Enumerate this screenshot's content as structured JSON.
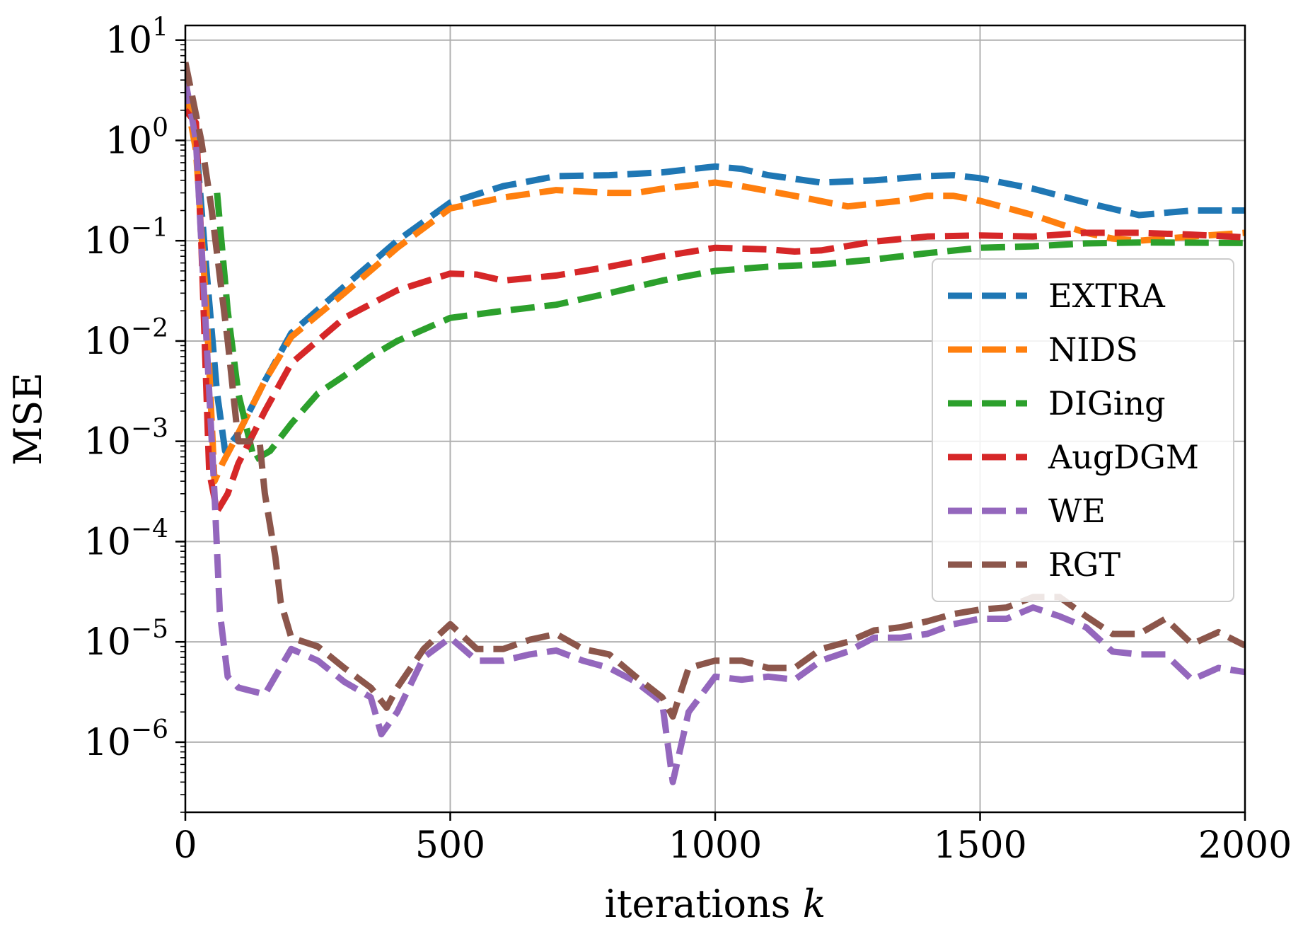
{
  "chart_data": {
    "type": "line",
    "xlabel": "iterations",
    "xlabel_var": "k",
    "ylabel": "MSE",
    "xlim": [
      0,
      2000
    ],
    "ylim": [
      2e-07,
      14
    ],
    "yscale": "log",
    "grid": true,
    "legend_position": "center-right",
    "x_ticks": [
      0,
      500,
      1000,
      1500,
      2000
    ],
    "x_tick_labels": [
      "0",
      "500",
      "1000",
      "1500",
      "2000"
    ],
    "y_ticks": [
      {
        "value": 10,
        "base": "10",
        "exp": "1"
      },
      {
        "value": 1,
        "base": "10",
        "exp": "0"
      },
      {
        "value": 0.1,
        "base": "10",
        "exp": "−1"
      },
      {
        "value": 0.01,
        "base": "10",
        "exp": "−2"
      },
      {
        "value": 0.001,
        "base": "10",
        "exp": "−3"
      },
      {
        "value": 0.0001,
        "base": "10",
        "exp": "−4"
      },
      {
        "value": 1e-05,
        "base": "10",
        "exp": "−5"
      },
      {
        "value": 1e-06,
        "base": "10",
        "exp": "−6"
      }
    ],
    "series": [
      {
        "name": "EXTRA",
        "color": "#1f77b4",
        "points": [
          [
            0,
            3
          ],
          [
            20,
            1
          ],
          [
            40,
            0.05
          ],
          [
            60,
            0.003
          ],
          [
            75,
            0.0008
          ],
          [
            100,
            0.0012
          ],
          [
            150,
            0.004
          ],
          [
            200,
            0.012
          ],
          [
            300,
            0.035
          ],
          [
            400,
            0.1
          ],
          [
            500,
            0.24
          ],
          [
            600,
            0.35
          ],
          [
            700,
            0.44
          ],
          [
            800,
            0.45
          ],
          [
            900,
            0.48
          ],
          [
            1000,
            0.55
          ],
          [
            1050,
            0.52
          ],
          [
            1100,
            0.45
          ],
          [
            1200,
            0.38
          ],
          [
            1300,
            0.4
          ],
          [
            1400,
            0.44
          ],
          [
            1450,
            0.45
          ],
          [
            1500,
            0.42
          ],
          [
            1600,
            0.33
          ],
          [
            1700,
            0.24
          ],
          [
            1800,
            0.18
          ],
          [
            1850,
            0.19
          ],
          [
            1900,
            0.2
          ],
          [
            2000,
            0.2
          ]
        ]
      },
      {
        "name": "NIDS",
        "color": "#ff7f0e",
        "points": [
          [
            0,
            3
          ],
          [
            20,
            0.8
          ],
          [
            40,
            0.02
          ],
          [
            55,
            0.0004
          ],
          [
            70,
            0.0006
          ],
          [
            100,
            0.0012
          ],
          [
            150,
            0.004
          ],
          [
            200,
            0.011
          ],
          [
            300,
            0.03
          ],
          [
            400,
            0.085
          ],
          [
            500,
            0.21
          ],
          [
            600,
            0.27
          ],
          [
            700,
            0.32
          ],
          [
            800,
            0.3
          ],
          [
            850,
            0.3
          ],
          [
            900,
            0.33
          ],
          [
            1000,
            0.38
          ],
          [
            1050,
            0.35
          ],
          [
            1150,
            0.28
          ],
          [
            1250,
            0.22
          ],
          [
            1350,
            0.25
          ],
          [
            1400,
            0.28
          ],
          [
            1450,
            0.28
          ],
          [
            1500,
            0.25
          ],
          [
            1600,
            0.18
          ],
          [
            1700,
            0.12
          ],
          [
            1750,
            0.105
          ],
          [
            1800,
            0.1
          ],
          [
            1850,
            0.105
          ],
          [
            1900,
            0.11
          ],
          [
            2000,
            0.12
          ]
        ]
      },
      {
        "name": "DIGing",
        "color": "#2ca02c",
        "points": [
          [
            60,
            0.3
          ],
          [
            80,
            0.02
          ],
          [
            100,
            0.003
          ],
          [
            130,
            0.00065
          ],
          [
            160,
            0.0008
          ],
          [
            200,
            0.0015
          ],
          [
            250,
            0.003
          ],
          [
            300,
            0.0045
          ],
          [
            350,
            0.007
          ],
          [
            400,
            0.01
          ],
          [
            500,
            0.017
          ],
          [
            600,
            0.02
          ],
          [
            700,
            0.023
          ],
          [
            800,
            0.03
          ],
          [
            900,
            0.04
          ],
          [
            1000,
            0.05
          ],
          [
            1100,
            0.055
          ],
          [
            1200,
            0.058
          ],
          [
            1300,
            0.065
          ],
          [
            1400,
            0.075
          ],
          [
            1500,
            0.085
          ],
          [
            1600,
            0.088
          ],
          [
            1700,
            0.094
          ],
          [
            1800,
            0.096
          ],
          [
            2000,
            0.095
          ]
        ]
      },
      {
        "name": "AugDGM",
        "color": "#d62728",
        "points": [
          [
            0,
            2
          ],
          [
            20,
            1.5
          ],
          [
            30,
            0.1
          ],
          [
            45,
            0.0005
          ],
          [
            60,
            0.0002
          ],
          [
            80,
            0.0003
          ],
          [
            100,
            0.0006
          ],
          [
            150,
            0.002
          ],
          [
            200,
            0.006
          ],
          [
            300,
            0.017
          ],
          [
            400,
            0.032
          ],
          [
            500,
            0.047
          ],
          [
            550,
            0.046
          ],
          [
            600,
            0.04
          ],
          [
            700,
            0.045
          ],
          [
            800,
            0.055
          ],
          [
            900,
            0.07
          ],
          [
            1000,
            0.085
          ],
          [
            1100,
            0.082
          ],
          [
            1150,
            0.078
          ],
          [
            1200,
            0.08
          ],
          [
            1300,
            0.098
          ],
          [
            1400,
            0.11
          ],
          [
            1500,
            0.113
          ],
          [
            1600,
            0.11
          ],
          [
            1700,
            0.12
          ],
          [
            1800,
            0.12
          ],
          [
            1900,
            0.115
          ],
          [
            2000,
            0.108
          ]
        ]
      },
      {
        "name": "WE",
        "color": "#9467bd",
        "points": [
          [
            0,
            4
          ],
          [
            20,
            1
          ],
          [
            40,
            0.01
          ],
          [
            55,
            0.0003
          ],
          [
            65,
            2e-05
          ],
          [
            80,
            4.5e-06
          ],
          [
            100,
            3.5e-06
          ],
          [
            150,
            3e-06
          ],
          [
            200,
            8.5e-06
          ],
          [
            250,
            6.5e-06
          ],
          [
            300,
            4e-06
          ],
          [
            350,
            2.8e-06
          ],
          [
            370,
            1.2e-06
          ],
          [
            400,
            2e-06
          ],
          [
            450,
            7e-06
          ],
          [
            500,
            1.1e-05
          ],
          [
            550,
            6.5e-06
          ],
          [
            600,
            6.5e-06
          ],
          [
            650,
            7.5e-06
          ],
          [
            700,
            8.2e-06
          ],
          [
            750,
            6.5e-06
          ],
          [
            800,
            5.5e-06
          ],
          [
            850,
            4e-06
          ],
          [
            900,
            2.5e-06
          ],
          [
            920,
            4e-07
          ],
          [
            950,
            2e-06
          ],
          [
            1000,
            4.5e-06
          ],
          [
            1050,
            4.2e-06
          ],
          [
            1100,
            4.5e-06
          ],
          [
            1150,
            4.2e-06
          ],
          [
            1200,
            6.5e-06
          ],
          [
            1250,
            8e-06
          ],
          [
            1300,
            1.1e-05
          ],
          [
            1350,
            1.1e-05
          ],
          [
            1400,
            1.2e-05
          ],
          [
            1450,
            1.5e-05
          ],
          [
            1500,
            1.7e-05
          ],
          [
            1550,
            1.7e-05
          ],
          [
            1600,
            2.2e-05
          ],
          [
            1650,
            1.8e-05
          ],
          [
            1700,
            1.4e-05
          ],
          [
            1750,
            8e-06
          ],
          [
            1800,
            7.5e-06
          ],
          [
            1850,
            7.5e-06
          ],
          [
            1900,
            4.2e-06
          ],
          [
            1950,
            5.5e-06
          ],
          [
            2000,
            5e-06
          ]
        ]
      },
      {
        "name": "RGT",
        "color": "#8c564b",
        "points": [
          [
            0,
            6
          ],
          [
            30,
            1
          ],
          [
            50,
            0.2
          ],
          [
            80,
            0.01
          ],
          [
            100,
            0.001
          ],
          [
            140,
            0.001
          ],
          [
            150,
            0.0003
          ],
          [
            170,
            7e-05
          ],
          [
            180,
            2.5e-05
          ],
          [
            200,
            1.1e-05
          ],
          [
            250,
            9e-06
          ],
          [
            300,
            5.5e-06
          ],
          [
            350,
            3.5e-06
          ],
          [
            380,
            2.2e-06
          ],
          [
            400,
            3.5e-06
          ],
          [
            450,
            8.5e-06
          ],
          [
            500,
            1.5e-05
          ],
          [
            550,
            8.5e-06
          ],
          [
            600,
            8.5e-06
          ],
          [
            650,
            1.05e-05
          ],
          [
            700,
            1.2e-05
          ],
          [
            750,
            8.5e-06
          ],
          [
            800,
            7.5e-06
          ],
          [
            850,
            4.5e-06
          ],
          [
            900,
            2.8e-06
          ],
          [
            920,
            1.8e-06
          ],
          [
            950,
            5.5e-06
          ],
          [
            1000,
            6.5e-06
          ],
          [
            1050,
            6.5e-06
          ],
          [
            1100,
            5.5e-06
          ],
          [
            1150,
            5.5e-06
          ],
          [
            1200,
            8.5e-06
          ],
          [
            1250,
            1e-05
          ],
          [
            1300,
            1.3e-05
          ],
          [
            1350,
            1.4e-05
          ],
          [
            1400,
            1.6e-05
          ],
          [
            1450,
            1.9e-05
          ],
          [
            1500,
            2.1e-05
          ],
          [
            1550,
            2.2e-05
          ],
          [
            1600,
            2.8e-05
          ],
          [
            1650,
            2.8e-05
          ],
          [
            1700,
            1.8e-05
          ],
          [
            1750,
            1.2e-05
          ],
          [
            1800,
            1.2e-05
          ],
          [
            1850,
            1.7e-05
          ],
          [
            1900,
            9.5e-06
          ],
          [
            1950,
            1.25e-05
          ],
          [
            2000,
            9.2e-06
          ]
        ]
      }
    ]
  }
}
